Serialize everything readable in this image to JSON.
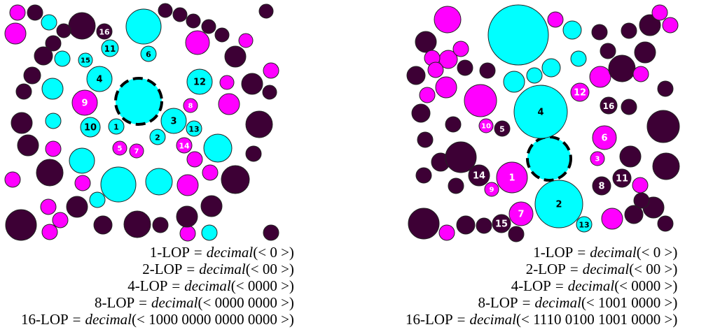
{
  "colors": {
    "cyan": "#00ffff",
    "magenta": "#ff00ff",
    "dark": "#3d0035",
    "stroke": "#222222",
    "label_on_light": "#000000",
    "label_on_dark": "#ffffff"
  },
  "panels": [
    {
      "formulas": [
        {
          "lhs": "1-LOP",
          "eq": "=",
          "fn": "decimal",
          "arg": "(< 0 >)"
        },
        {
          "lhs": "2-LOP",
          "eq": "=",
          "fn": "decimal",
          "arg": "(< 00 >)"
        },
        {
          "lhs": "4-LOP",
          "eq": "=",
          "fn": "decimal",
          "arg": "(< 0000 >)"
        },
        {
          "lhs": "8-LOP",
          "eq": "=",
          "fn": "decimal",
          "arg": "(< 0000 0000 >)"
        },
        {
          "lhs": "16-LOP",
          "eq": "=",
          "fn": "decimal",
          "arg": "(< 1000 0000 0000 0000 >)"
        }
      ],
      "center_circle": {
        "kind": "cyan",
        "style": "dashed"
      },
      "numbered": [
        {
          "label": "1",
          "kind": "cyan"
        },
        {
          "label": "2",
          "kind": "cyan"
        },
        {
          "label": "3",
          "kind": "cyan"
        },
        {
          "label": "4",
          "kind": "cyan"
        },
        {
          "label": "5",
          "kind": "magenta"
        },
        {
          "label": "6",
          "kind": "cyan"
        },
        {
          "label": "7",
          "kind": "magenta"
        },
        {
          "label": "8",
          "kind": "magenta"
        },
        {
          "label": "9",
          "kind": "magenta"
        },
        {
          "label": "10",
          "kind": "cyan"
        },
        {
          "label": "11",
          "kind": "cyan"
        },
        {
          "label": "12",
          "kind": "cyan"
        },
        {
          "label": "13",
          "kind": "cyan"
        },
        {
          "label": "14",
          "kind": "magenta"
        },
        {
          "label": "15",
          "kind": "cyan"
        },
        {
          "label": "16",
          "kind": "dark"
        }
      ]
    },
    {
      "formulas": [
        {
          "lhs": "1-LOP",
          "eq": "=",
          "fn": "decimal",
          "arg": "(< 0 >)"
        },
        {
          "lhs": "2-LOP",
          "eq": "=",
          "fn": "decimal",
          "arg": "(< 00 >)"
        },
        {
          "lhs": "4-LOP",
          "eq": "=",
          "fn": "decimal",
          "arg": "(< 0000 >)"
        },
        {
          "lhs": "8-LOP",
          "eq": "=",
          "fn": "decimal",
          "arg": "(< 1001 0000 >)"
        },
        {
          "lhs": "16-LOP",
          "eq": "=",
          "fn": "decimal",
          "arg": "(< 1110 0100 1001 0000 >)"
        }
      ],
      "center_circle": {
        "kind": "cyan",
        "style": "dashed"
      },
      "numbered": [
        {
          "label": "1",
          "kind": "magenta"
        },
        {
          "label": "2",
          "kind": "cyan"
        },
        {
          "label": "3",
          "kind": "magenta"
        },
        {
          "label": "4",
          "kind": "cyan"
        },
        {
          "label": "5",
          "kind": "dark"
        },
        {
          "label": "6",
          "kind": "magenta"
        },
        {
          "label": "7",
          "kind": "magenta"
        },
        {
          "label": "8",
          "kind": "dark"
        },
        {
          "label": "9",
          "kind": "magenta"
        },
        {
          "label": "10",
          "kind": "magenta"
        },
        {
          "label": "11",
          "kind": "dark"
        },
        {
          "label": "12",
          "kind": "magenta"
        },
        {
          "label": "13",
          "kind": "cyan"
        },
        {
          "label": "14",
          "kind": "dark"
        },
        {
          "label": "15",
          "kind": "dark"
        },
        {
          "label": "16",
          "kind": "dark"
        }
      ]
    }
  ]
}
